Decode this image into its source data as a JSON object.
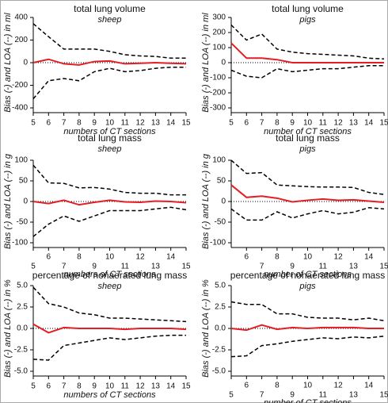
{
  "chart_data": [
    {
      "type": "line",
      "title": "total lung volume",
      "subtitle": "sheep",
      "ylabel": "Bias (-) and LOA (--) in ml",
      "xlabel": "numbers of CT sections",
      "x": [
        5,
        6,
        7,
        8,
        9,
        10,
        11,
        12,
        13,
        14,
        15
      ],
      "xlim": [
        5,
        15
      ],
      "xticks": [
        5,
        6,
        7,
        8,
        9,
        10,
        11,
        12,
        13,
        14,
        15
      ],
      "ylim": [
        -400,
        400
      ],
      "yticks": [
        400,
        200,
        0,
        -200,
        -400
      ],
      "stagger_x_labels": false,
      "series": [
        {
          "color": "#000000",
          "dash": true,
          "values": [
            345,
            230,
            120,
            120,
            120,
            100,
            70,
            60,
            55,
            40,
            40
          ]
        },
        {
          "color": "#000000",
          "dash": true,
          "values": [
            -320,
            -160,
            -140,
            -160,
            -80,
            -50,
            -80,
            -70,
            -50,
            -40,
            -40
          ]
        },
        {
          "color": "#e31e24",
          "dash": false,
          "values": [
            0,
            30,
            -10,
            -20,
            10,
            15,
            -10,
            -5,
            0,
            -5,
            -10
          ]
        }
      ]
    },
    {
      "type": "line",
      "title": "total lung volume",
      "subtitle": "pigs",
      "ylabel": "Bias (-) and LOA (--) in ml",
      "xlabel": "number of CT sections",
      "x": [
        5,
        6,
        7,
        8,
        9,
        10,
        11,
        12,
        13,
        14,
        15
      ],
      "xlim": [
        5,
        15
      ],
      "xticks": [
        5,
        6,
        7,
        8,
        9,
        10,
        11,
        12,
        13,
        14,
        15
      ],
      "ylim": [
        -300,
        300
      ],
      "yticks": [
        300,
        200,
        100,
        0,
        -100,
        -200,
        -300
      ],
      "stagger_x_labels": false,
      "series": [
        {
          "color": "#000000",
          "dash": true,
          "values": [
            250,
            150,
            190,
            90,
            70,
            60,
            55,
            50,
            45,
            30,
            25
          ]
        },
        {
          "color": "#000000",
          "dash": true,
          "values": [
            -50,
            -90,
            -100,
            -40,
            -60,
            -50,
            -40,
            -40,
            -30,
            -20,
            -20
          ]
        },
        {
          "color": "#e31e24",
          "dash": false,
          "values": [
            130,
            30,
            30,
            20,
            0,
            0,
            0,
            0,
            0,
            0,
            0
          ]
        }
      ]
    },
    {
      "type": "line",
      "title": "total lung mass",
      "subtitle": "sheep",
      "ylabel": "Bias (-) and LOA (--) in g",
      "xlabel": "numbers of CT sections",
      "x": [
        5,
        6,
        7,
        8,
        9,
        10,
        11,
        12,
        13,
        14,
        15
      ],
      "xlim": [
        5,
        15
      ],
      "xticks": [
        5,
        6,
        7,
        8,
        9,
        10,
        11,
        12,
        13,
        14,
        15
      ],
      "ylim": [
        -100,
        100
      ],
      "yticks": [
        100,
        50,
        0,
        -50,
        -100
      ],
      "stagger_x_labels": true,
      "series": [
        {
          "color": "#000000",
          "dash": true,
          "values": [
            88,
            45,
            44,
            33,
            34,
            30,
            22,
            20,
            20,
            16,
            16
          ]
        },
        {
          "color": "#000000",
          "dash": true,
          "values": [
            -85,
            -55,
            -35,
            -48,
            -35,
            -22,
            -22,
            -22,
            -18,
            -14,
            -20
          ]
        },
        {
          "color": "#e31e24",
          "dash": false,
          "values": [
            0,
            -5,
            3,
            -8,
            -2,
            3,
            -1,
            -2,
            1,
            0,
            -3
          ]
        }
      ]
    },
    {
      "type": "line",
      "title": "total lung mass",
      "subtitle": "pigs",
      "ylabel": "Bias (-) and LOA (--) in g",
      "xlabel": "number of CT sections",
      "x": [
        5,
        6,
        7,
        8,
        9,
        10,
        11,
        12,
        13,
        14,
        15
      ],
      "xlim": [
        5,
        15
      ],
      "xticks": [
        6,
        7,
        8,
        9,
        10,
        11,
        12,
        13,
        14,
        15
      ],
      "ylim": [
        -100,
        100
      ],
      "yticks": [
        100,
        50,
        0,
        -50,
        -100
      ],
      "stagger_x_labels": true,
      "series": [
        {
          "color": "#000000",
          "dash": true,
          "values": [
            100,
            68,
            70,
            40,
            38,
            36,
            35,
            35,
            34,
            22,
            17
          ]
        },
        {
          "color": "#000000",
          "dash": true,
          "values": [
            -18,
            -45,
            -45,
            -25,
            -40,
            -30,
            -22,
            -30,
            -26,
            -15,
            -18
          ]
        },
        {
          "color": "#e31e24",
          "dash": false,
          "values": [
            40,
            10,
            13,
            8,
            -1,
            3,
            6,
            3,
            4,
            1,
            -2
          ]
        }
      ]
    },
    {
      "type": "line",
      "title": "percentage of nonaerated lung mass",
      "subtitle": "sheep",
      "ylabel": "Bias (-) and LOA (--) in %",
      "xlabel": "numbers of CT sections",
      "x": [
        5,
        6,
        7,
        8,
        9,
        10,
        11,
        12,
        13,
        14,
        15
      ],
      "xlim": [
        5,
        15
      ],
      "xticks": [
        5,
        6,
        7,
        8,
        9,
        10,
        11,
        12,
        13,
        14,
        15
      ],
      "ylim": [
        -5,
        5
      ],
      "yticks": [
        {
          "value": 5,
          "label": "5.0"
        },
        {
          "value": 2.5,
          "label": "2.5"
        },
        {
          "value": 0,
          "label": "0.0"
        },
        {
          "value": -2.5,
          "label": "-2.5"
        },
        {
          "value": -5,
          "label": "-5.0"
        }
      ],
      "stagger_x_labels": false,
      "series": [
        {
          "color": "#000000",
          "dash": true,
          "values": [
            4.8,
            2.9,
            2.5,
            1.8,
            1.6,
            1.2,
            1.2,
            1.1,
            1.0,
            0.9,
            0.8
          ]
        },
        {
          "color": "#000000",
          "dash": true,
          "values": [
            -3.6,
            -3.7,
            -2.0,
            -1.7,
            -1.4,
            -1.1,
            -1.3,
            -1.1,
            -0.9,
            -0.8,
            -0.8
          ]
        },
        {
          "color": "#e31e24",
          "dash": false,
          "values": [
            0.5,
            -0.5,
            0.1,
            0,
            0,
            0,
            -0.1,
            0,
            0,
            0,
            -0.1
          ]
        }
      ]
    },
    {
      "type": "line",
      "title": "percentage of nonaerated lung mass",
      "subtitle": "pigs",
      "ylabel": "Bias (-) and LOA (--) in %",
      "xlabel": "number of CT sections",
      "x": [
        5,
        6,
        7,
        8,
        9,
        10,
        11,
        12,
        13,
        14,
        15
      ],
      "xlim": [
        5,
        15
      ],
      "xticks": [
        5,
        6,
        7,
        8,
        9,
        10,
        11,
        12,
        13,
        14,
        15
      ],
      "ylim": [
        -5,
        5
      ],
      "yticks": [
        {
          "value": 5,
          "label": "5.0"
        },
        {
          "value": 2.5,
          "label": "2.5"
        },
        {
          "value": 0,
          "label": "0.0"
        },
        {
          "value": -2.5,
          "label": "-2.5"
        },
        {
          "value": -5,
          "label": "-5.0"
        }
      ],
      "stagger_x_labels": true,
      "series": [
        {
          "color": "#000000",
          "dash": true,
          "values": [
            3.1,
            2.8,
            2.8,
            1.7,
            1.7,
            1.3,
            1.2,
            1.2,
            1.0,
            1.2,
            0.9
          ]
        },
        {
          "color": "#000000",
          "dash": true,
          "values": [
            -3.3,
            -3.2,
            -2.0,
            -1.8,
            -1.5,
            -1.3,
            -1.1,
            -1.2,
            -1.0,
            -1.1,
            -0.9
          ]
        },
        {
          "color": "#e31e24",
          "dash": false,
          "values": [
            0,
            -0.2,
            0.4,
            -0.1,
            0.1,
            0,
            0.1,
            0.1,
            0.1,
            0,
            0
          ]
        }
      ]
    }
  ]
}
